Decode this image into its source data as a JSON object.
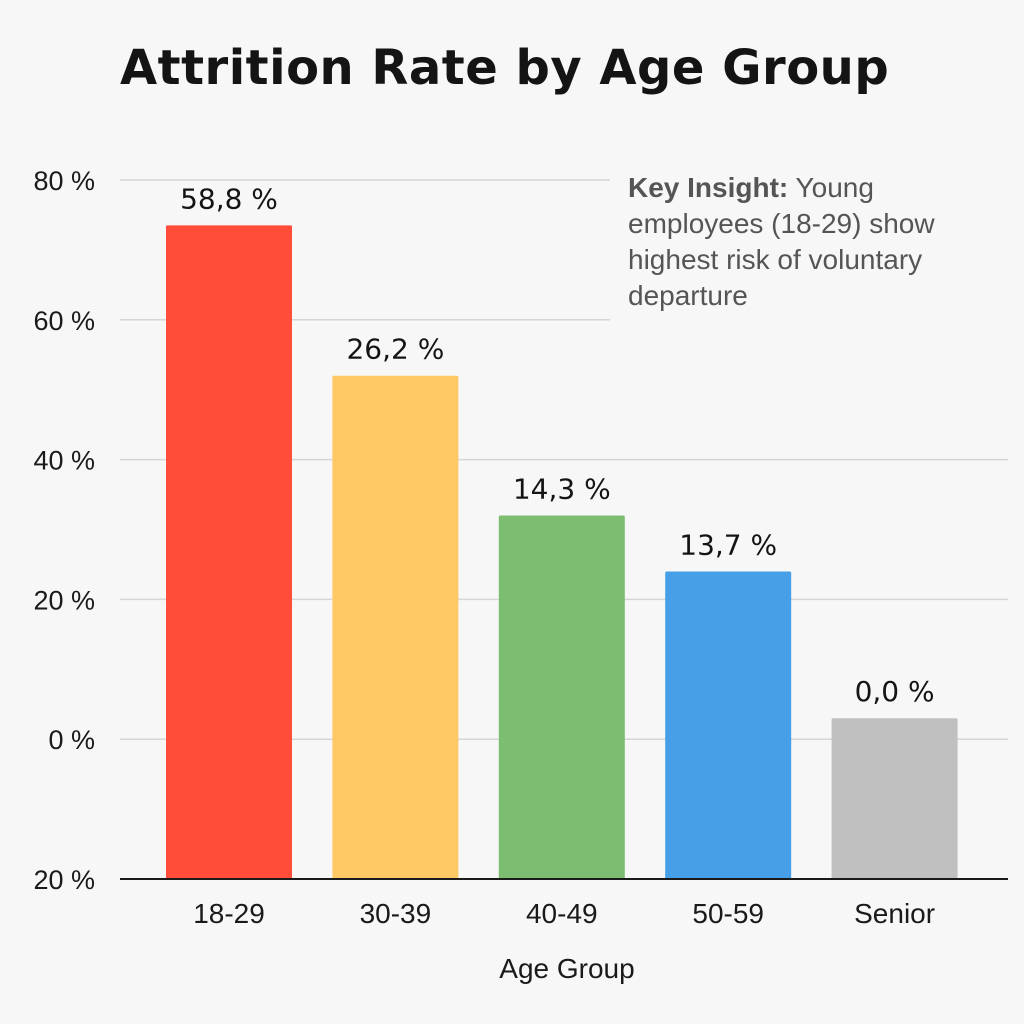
{
  "chart_data": {
    "type": "bar",
    "title": "Attrition Rate by Age Group",
    "xlabel": "Age Group",
    "ylabel": "",
    "categories": [
      "18-29",
      "30-39",
      "40-49",
      "50-59",
      "Senior"
    ],
    "values": [
      58.8,
      26.2,
      14.3,
      13.7,
      0.0
    ],
    "value_labels": [
      "58,8 %",
      "26,2 %",
      "14,3 %",
      "13,7 %",
      "0,0 %"
    ],
    "bar_levels": [
      73.5,
      52,
      32,
      24,
      3
    ],
    "colors": [
      "#ff4d3a",
      "#fec965",
      "#7dbd72",
      "#479fe8",
      "#c0c0c0"
    ],
    "y_ticks": [
      {
        "value": 80,
        "label": "80 %"
      },
      {
        "value": 60,
        "label": "60 %"
      },
      {
        "value": 40,
        "label": "40 %"
      },
      {
        "value": 20,
        "label": "20 %"
      },
      {
        "value": 0,
        "label": "0 %"
      },
      {
        "value": -20,
        "label": "20 %"
      }
    ],
    "ylim": [
      -20,
      80
    ],
    "grid": true,
    "annotations": [
      {
        "heading": "Key Insight:",
        "text": "Young employees (18-29) show highest risk of voluntary departure",
        "placement": "top-right"
      }
    ]
  }
}
